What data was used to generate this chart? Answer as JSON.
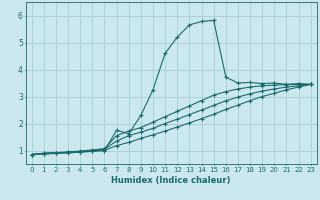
{
  "xlabel": "Humidex (Indice chaleur)",
  "bg_color": "#cce8ef",
  "grid_color": "#aacdd6",
  "line_color": "#1a6b6b",
  "xlim": [
    -0.5,
    23.5
  ],
  "ylim": [
    0.5,
    6.5
  ],
  "xticks": [
    0,
    1,
    2,
    3,
    4,
    5,
    6,
    7,
    8,
    9,
    10,
    11,
    12,
    13,
    14,
    15,
    16,
    17,
    18,
    19,
    20,
    21,
    22,
    23
  ],
  "yticks": [
    1,
    2,
    3,
    4,
    5,
    6
  ],
  "series": [
    {
      "x": [
        0,
        1,
        2,
        3,
        4,
        5,
        6,
        7,
        8,
        9,
        10,
        11,
        12,
        13,
        14,
        15,
        16,
        17,
        18,
        19,
        20,
        21,
        22,
        23
      ],
      "y": [
        0.85,
        0.9,
        0.92,
        0.93,
        0.95,
        0.97,
        1.0,
        1.75,
        1.62,
        2.3,
        3.25,
        4.6,
        5.2,
        5.65,
        5.78,
        5.82,
        3.72,
        3.5,
        3.52,
        3.48,
        3.5,
        3.45,
        3.48,
        3.45
      ]
    },
    {
      "x": [
        0,
        1,
        2,
        3,
        4,
        5,
        6,
        7,
        8,
        9,
        10,
        11,
        12,
        13,
        14,
        15,
        16,
        17,
        18,
        19,
        20,
        21,
        22,
        23
      ],
      "y": [
        0.85,
        0.9,
        0.92,
        0.95,
        0.98,
        1.02,
        1.07,
        1.55,
        1.72,
        1.85,
        2.05,
        2.25,
        2.45,
        2.65,
        2.85,
        3.05,
        3.18,
        3.28,
        3.35,
        3.4,
        3.42,
        3.44,
        3.45,
        3.45
      ]
    },
    {
      "x": [
        0,
        1,
        2,
        3,
        4,
        5,
        6,
        7,
        8,
        9,
        10,
        11,
        12,
        13,
        14,
        15,
        16,
        17,
        18,
        19,
        20,
        21,
        22,
        23
      ],
      "y": [
        0.85,
        0.88,
        0.9,
        0.93,
        0.96,
        1.0,
        1.05,
        1.35,
        1.55,
        1.68,
        1.82,
        2.0,
        2.16,
        2.33,
        2.5,
        2.67,
        2.84,
        2.98,
        3.1,
        3.2,
        3.28,
        3.35,
        3.4,
        3.45
      ]
    },
    {
      "x": [
        0,
        1,
        2,
        3,
        4,
        5,
        6,
        7,
        8,
        9,
        10,
        11,
        12,
        13,
        14,
        15,
        16,
        17,
        18,
        19,
        20,
        21,
        22,
        23
      ],
      "y": [
        0.85,
        0.87,
        0.89,
        0.91,
        0.94,
        0.97,
        1.01,
        1.18,
        1.3,
        1.45,
        1.58,
        1.72,
        1.87,
        2.02,
        2.18,
        2.34,
        2.52,
        2.68,
        2.85,
        3.0,
        3.12,
        3.25,
        3.35,
        3.45
      ]
    }
  ]
}
